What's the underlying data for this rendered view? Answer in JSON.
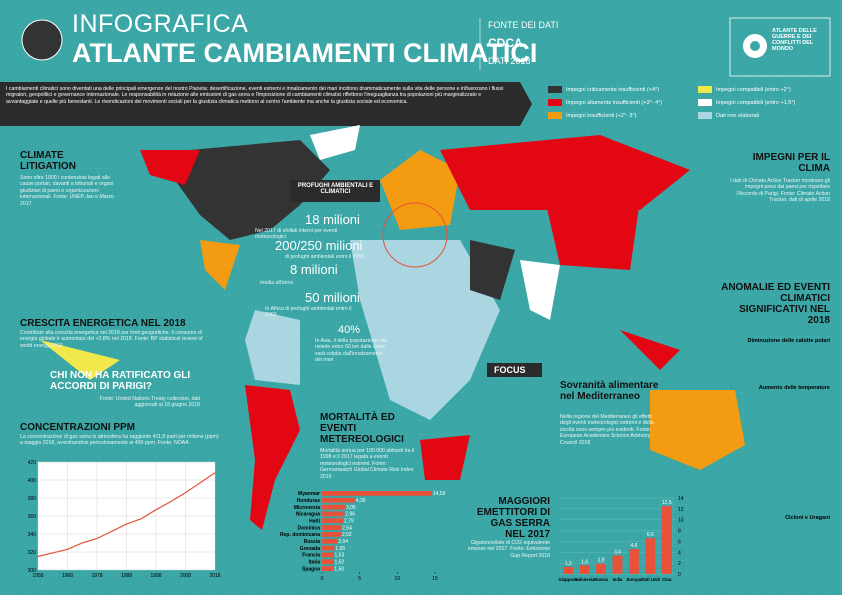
{
  "header": {
    "kicker": "INFOGRAFICA",
    "title": "ATLANTE CAMBIAMENTI CLIMATICI",
    "source_label": "FONTE DEI DATI",
    "source": "CDCA",
    "year": "DATI 2018",
    "logo": "ATLANTE DELLE GUERRE E DEI CONFLITTI DEL MONDO"
  },
  "intro": "I cambiamenti climatici sono diventati una delle principali emergenze del nostro Pianeta: desertificazione, eventi estremi e innalzamento dei mari incidono drammaticamente sulla vita delle persone e influenzano i flussi migratori, geopolitici e governance internazionale. Le responsabilità in relazione alle emissioni di gas serra e l'imposizione di cambiamenti climatici riflettono l'ineguaglianza tra popolazioni più marginalizzate e avvantaggiate e quelle più benestanti. Le rivendicazioni dei movimenti sociali per la giustizia climatica mettono al centro l'ambiente ma anche la giustizia sociale ed economica.",
  "legend": [
    "Impegni criticamente insufficienti (<4°)",
    "Impegni altamente insufficienti (+3°- 4°)",
    "Impegni insufficienti (+2°- 3°)",
    "Impegni compatibili (entro +2°)",
    "Impegni compatibili (entro +1,5°)",
    "Dati non elaborati"
  ],
  "legend_colors": [
    "#333333",
    "#e30613",
    "#f39c12",
    "#f1e94b",
    "#ffffff",
    "#a9d6e0"
  ],
  "sections": {
    "litigation_title": "CLIMATE LITIGATION",
    "litigation_text": "Sono oltre 1000 i contenziosi legati alle cause portati, davanti a tribunali e organi giudiziari di paesi e organizzazioni internazionali. Fonte: UNEP Jan e Marzo 2017",
    "energy_title": "CRESCITA ENERGETICA NEL 2018",
    "energy_text": "Contributo alla crescita energetica nel 2018 per fonti geografiche. Il consumo di energia globale è aumentato del +2,8% nel 2018. Fonte: BP statistical review of world energy 2019",
    "paris_title": "CHI NON HA RATIFICATO GLI ACCORDI DI PARIGI?",
    "paris_source": "Fonte: United Nations Treaty collection, dati aggiornati al 18 giugno 2018",
    "ppm_title": "CONCENTRAZIONI PPM",
    "ppm_text": "La concentrazione di gas serra in atmosfera ha raggiunto 411,8 parti per milione (ppm) a maggio 2018, avvicinandosi pericolosamente ai 450 ppm. Fonte: NOAA",
    "refugees_title": "PROFUGHI AMBIENTALI E CLIMATICI",
    "ref1": "18 milioni",
    "ref1_text": "Nel 2017 di sfollati interni per eventi meteorologici",
    "ref2": "200/250 milioni",
    "ref2_text": "di profughi ambientali entro il 2050",
    "ref3": "8 milioni",
    "ref3_text": "media all'anno",
    "ref4": "50 milioni",
    "ref4_text": "In Africa di profughi ambientali entro il 2060",
    "ref5": "40%",
    "ref5_text": "In Asia, il della popolazione che risiede entro 60 km dalle coste sarà colpita dall'innalzamento dei mari",
    "impegni_title": "IMPEGNI PER IL CLIMA",
    "impegni_text": "I dati di Climate Action Tracker mostrano gli impegni presi dai paesi per rispettare l'Accordo di Parigi. Fonte: Climate Action Tracker, dati di aprile 2018",
    "anomalie_title": "ANOMALIE ED EVENTI CLIMATICI SIGNIFICATIVI NEL 2018",
    "anom1": "Diminuzione delle calotte polari",
    "anom2": "Aumento delle temperature",
    "anom3": "Cicloni e Uragani",
    "focus": "FOCUS",
    "focus_title": "Sovranità alimentare nel Mediterraneo",
    "focus_text": "Nella regione del Mediterraneo gli effetti degli eventi meteorologici estremi e della siccità sono sempre più evidenti. Fonte: European Academies Science Advisory Council 2018",
    "mort_title": "MORTALITÀ ED EVENTI METEREOLOGICI",
    "mort_text": "Mortalità annua per 100.000 abitanti tra il 1998 e il 2017 legata a eventi meteorologici estremi. Fonte: Germanwatch Global Climate Risk Index 2019",
    "emis_title": "MAGGIORI EMETTITORI DI GAS SERRA NEL 2017",
    "emis_text": "Gigatonnellate di CO2 equivalente emesse nel 2017. Fonte: Emissions Gap Report 2018"
  },
  "chart_data": [
    {
      "type": "hbar",
      "categories": [
        "Myanmar",
        "Honduras",
        "Micronesia",
        "Nicaragua",
        "Haiti",
        "Dominica",
        "Rep. dominicana",
        "Russia",
        "Grenada",
        "Francia",
        "Italia",
        "Spagna"
      ],
      "values": [
        14.59,
        4.36,
        3.05,
        2.96,
        2.79,
        2.54,
        2.52,
        2.04,
        1.65,
        1.53,
        1.52,
        1.5
      ],
      "value_labels": [
        "14,59",
        "4,36",
        "3,05",
        "2,96",
        "2,79",
        "2,54",
        "2,52",
        "2,04",
        "1,65",
        "1,53",
        "1,52",
        "1,50"
      ],
      "color": "#e8523a",
      "xlim": [
        0,
        15
      ],
      "xticks": [
        0,
        5,
        10,
        15
      ]
    },
    {
      "type": "bar",
      "categories": [
        "Giappone",
        "Indonesia",
        "Russia",
        "India",
        "Europa",
        "Stati Uniti",
        "Cina"
      ],
      "values": [
        1.3,
        1.6,
        1.9,
        3.4,
        4.6,
        6.6,
        12.5
      ],
      "value_labels": [
        "1,3",
        "1,6",
        "1,9",
        "3,4",
        "4,6",
        "6,6",
        "12,5"
      ],
      "color": "#e8523a",
      "ylim": [
        0,
        14
      ],
      "yticks": [
        0,
        2,
        4,
        6,
        8,
        10,
        12,
        14
      ]
    },
    {
      "type": "line",
      "x": [
        1958,
        1963,
        1968,
        1973,
        1978,
        1983,
        1988,
        1993,
        1998,
        2003,
        2008,
        2013,
        2018
      ],
      "values": [
        315,
        319,
        323,
        330,
        335,
        343,
        351,
        357,
        367,
        376,
        386,
        397,
        408
      ],
      "color": "#e8523a",
      "xlim": [
        1958,
        2018
      ],
      "xticks": [
        1958,
        1968,
        1978,
        1988,
        1998,
        2008,
        2018
      ],
      "ylim": [
        300,
        420
      ],
      "yticks": [
        300,
        320,
        340,
        360,
        380,
        400,
        420
      ]
    }
  ]
}
